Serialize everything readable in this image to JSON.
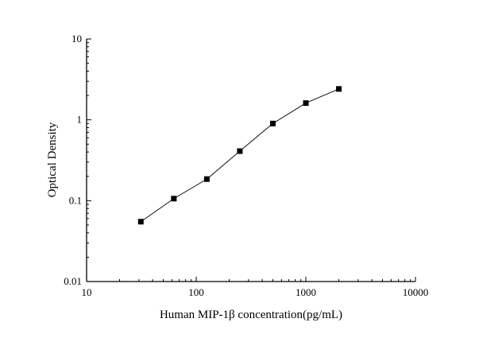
{
  "chart_data": {
    "type": "line",
    "title": "",
    "xlabel": "Human MIP-1β concentration(pg/mL)",
    "ylabel": "Optical Density",
    "x_scale": "log",
    "y_scale": "log",
    "xlim": [
      10,
      10000
    ],
    "ylim": [
      0.01,
      10
    ],
    "x_ticks": [
      "10",
      "100",
      "1000",
      "10000"
    ],
    "y_ticks": [
      "0.01",
      "0.1",
      "1",
      "10"
    ],
    "grid": false,
    "marker": "square",
    "color": "#000000",
    "x": [
      31.25,
      62.5,
      125,
      250,
      500,
      1000,
      2000
    ],
    "y": [
      0.055,
      0.106,
      0.185,
      0.41,
      0.9,
      1.61,
      2.41
    ]
  }
}
